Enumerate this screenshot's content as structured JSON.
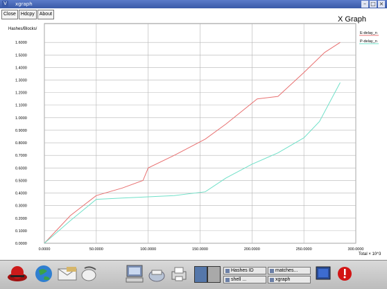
{
  "window": {
    "title": "xgraph",
    "sysmenu_icon": "V",
    "controls": [
      "–",
      "□",
      "×"
    ]
  },
  "toolbar": {
    "close_label": "Close",
    "hdcpy_label": "Hdcpy",
    "about_label": "About"
  },
  "graph_title": "X Graph",
  "chart_data": {
    "type": "line",
    "title": "X Graph",
    "ylabel": "Hashes/Blocks/",
    "xlabel": "Total × 10^3",
    "xlim": [
      0,
      300000
    ],
    "ylim": [
      0,
      1.75
    ],
    "grid": true,
    "legend_position": "top-right",
    "x_ticks": [
      "0.0000",
      "50.0000",
      "100.0000",
      "150.0000",
      "200.0000",
      "250.0000",
      "300.0000"
    ],
    "x_tick_values": [
      0,
      50000,
      100000,
      150000,
      200000,
      250000,
      300000
    ],
    "y_ticks": [
      "0.0000",
      "0.1000",
      "0.2000",
      "0.3000",
      "0.4000",
      "0.5000",
      "0.6000",
      "0.7000",
      "0.8000",
      "0.9000",
      "1.0000",
      "1.1000",
      "1.2000",
      "1.3000",
      "1.4000",
      "1.5000",
      "1.6000"
    ],
    "y_tick_values": [
      0,
      0.1,
      0.2,
      0.3,
      0.4,
      0.5,
      0.6,
      0.7,
      0.8,
      0.9,
      1.0,
      1.1,
      1.2,
      1.3,
      1.4,
      1.5,
      1.6
    ],
    "series": [
      {
        "name": "E-delay_n",
        "color": "#e87070",
        "x": [
          0,
          25000,
          50000,
          75000,
          95000,
          100000,
          125000,
          155000,
          175000,
          205000,
          225000,
          250000,
          270000,
          285000
        ],
        "y": [
          0.0,
          0.22,
          0.38,
          0.44,
          0.5,
          0.6,
          0.7,
          0.83,
          0.95,
          1.15,
          1.17,
          1.36,
          1.52,
          1.6
        ]
      },
      {
        "name": "P-delay_n",
        "color": "#6fe0c8",
        "x": [
          0,
          25000,
          50000,
          75000,
          100000,
          125000,
          155000,
          175000,
          200000,
          225000,
          250000,
          265000,
          285000
        ],
        "y": [
          0.0,
          0.18,
          0.35,
          0.36,
          0.37,
          0.38,
          0.41,
          0.52,
          0.63,
          0.72,
          0.84,
          0.97,
          1.28
        ]
      }
    ]
  },
  "taskbar": {
    "launchers": [
      "redhat-icon",
      "globe-icon",
      "mail-icon",
      "mouse-icon",
      "workstation-icon",
      "printer-icon",
      "printer-settings-icon"
    ],
    "tasks": [
      {
        "label": "Hashes ID"
      },
      {
        "label": "matches..."
      },
      {
        "label": "shell ..."
      },
      {
        "label": "xgraph"
      }
    ],
    "colors": {
      "desktop1": "#5577aa",
      "desktop2": "#a9a9a9"
    }
  }
}
